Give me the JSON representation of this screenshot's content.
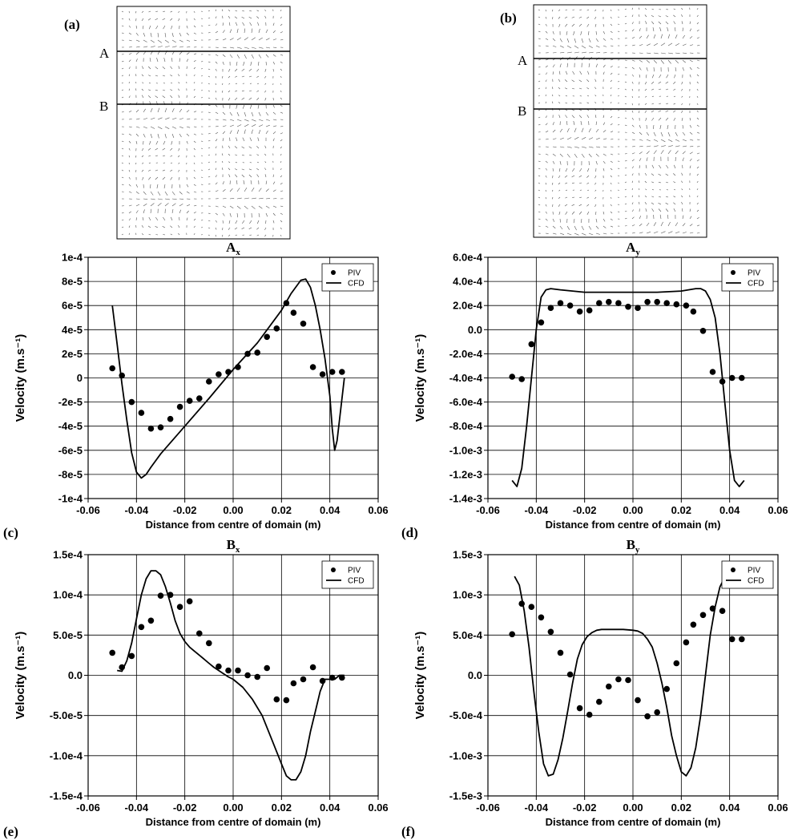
{
  "panel_letters": [
    "(a)",
    "(b)",
    "(c)",
    "(d)",
    "(e)",
    "(f)"
  ],
  "line_labels": [
    "A",
    "B"
  ],
  "chart_data": [
    {
      "panel": "(c)",
      "type": "line",
      "title": "A",
      "title_sub": "x",
      "xlabel": "Distance from centre of domain (m)",
      "ylabel": "Velocity (m.s⁻¹)",
      "xlim": [
        -0.06,
        0.06
      ],
      "ylim": [
        -0.0001,
        0.0001
      ],
      "xticks": [
        -0.06,
        -0.04,
        -0.02,
        0.0,
        0.02,
        0.04,
        0.06
      ],
      "xtick_labels": [
        "-0.06",
        "-0.04",
        "-0.02",
        "0.00",
        "0.02",
        "0.04",
        "0.06"
      ],
      "yticks": [
        -0.0001,
        -8e-05,
        -6e-05,
        -4e-05,
        -2e-05,
        0,
        2e-05,
        4e-05,
        6e-05,
        8e-05,
        0.0001
      ],
      "ytick_labels": [
        "-1e-4",
        "-8e-5",
        "-6e-5",
        "-4e-5",
        "-2e-5",
        "0",
        "2e-5",
        "4e-5",
        "6e-5",
        "8e-5",
        "1e-4"
      ],
      "grid": true,
      "legend_position": "top-right",
      "series": [
        {
          "name": "PIV",
          "style": "points",
          "x": [
            -0.05,
            -0.046,
            -0.042,
            -0.038,
            -0.034,
            -0.03,
            -0.026,
            -0.022,
            -0.018,
            -0.014,
            -0.01,
            -0.006,
            -0.002,
            0.002,
            0.006,
            0.01,
            0.014,
            0.018,
            0.022,
            0.025,
            0.029,
            0.033,
            0.037,
            0.041,
            0.045
          ],
          "y": [
            8e-06,
            2e-06,
            -2e-05,
            -2.9e-05,
            -4.2e-05,
            -4.1e-05,
            -3.4e-05,
            -2.4e-05,
            -1.9e-05,
            -1.7e-05,
            -3e-06,
            3e-06,
            5e-06,
            9e-06,
            2e-05,
            2.1e-05,
            3.4e-05,
            4.1e-05,
            6.2e-05,
            5.4e-05,
            4.5e-05,
            9e-06,
            3e-06,
            5e-06,
            5e-06
          ]
        },
        {
          "name": "CFD",
          "style": "line",
          "x": [
            -0.05,
            -0.048,
            -0.046,
            -0.044,
            -0.042,
            -0.04,
            -0.038,
            -0.036,
            -0.034,
            -0.03,
            -0.02,
            -0.01,
            0.0,
            0.01,
            0.02,
            0.024,
            0.028,
            0.03,
            0.032,
            0.034,
            0.036,
            0.038,
            0.04,
            0.041,
            0.042,
            0.043,
            0.044,
            0.046
          ],
          "y": [
            6e-05,
            2.8e-05,
            -5e-06,
            -3.5e-05,
            -6.2e-05,
            -7.8e-05,
            -8.3e-05,
            -8e-05,
            -7.4e-05,
            -6.3e-05,
            -4e-05,
            -1.7e-05,
            7e-06,
            2.9e-05,
            5.6e-05,
            7e-05,
            8.1e-05,
            8.2e-05,
            7.5e-05,
            6e-05,
            4e-05,
            1.6e-05,
            -1.5e-05,
            -4.2e-05,
            -6e-05,
            -5.2e-05,
            -3.5e-05,
            0.0
          ]
        }
      ]
    },
    {
      "panel": "(d)",
      "type": "line",
      "title": "A",
      "title_sub": "y",
      "xlabel": "Distance from centre of domain (m)",
      "ylabel": "Velocity (m.s⁻¹)",
      "xlim": [
        -0.06,
        0.06
      ],
      "ylim": [
        -0.0014,
        0.0006
      ],
      "xticks": [
        -0.06,
        -0.04,
        -0.02,
        0.0,
        0.02,
        0.04,
        0.06
      ],
      "xtick_labels": [
        "-0.06",
        "-0.04",
        "-0.02",
        "0.00",
        "0.02",
        "0.04",
        "0.06"
      ],
      "yticks": [
        -0.0014,
        -0.0012,
        -0.001,
        -0.0008,
        -0.0006,
        -0.0004,
        -0.0002,
        0,
        0.0002,
        0.0004,
        0.0006
      ],
      "ytick_labels": [
        "-1.4e-3",
        "-1.2e-3",
        "-1.0e-3",
        "-8.0e-4",
        "-6.0e-4",
        "-4.0e-4",
        "-2.0e-4",
        "0.0",
        "2.0e-4",
        "4.0e-4",
        "6.0e-4"
      ],
      "grid": true,
      "legend_position": "top-right",
      "series": [
        {
          "name": "PIV",
          "style": "points",
          "x": [
            -0.05,
            -0.046,
            -0.042,
            -0.038,
            -0.034,
            -0.03,
            -0.026,
            -0.022,
            -0.018,
            -0.014,
            -0.01,
            -0.006,
            -0.002,
            0.002,
            0.006,
            0.01,
            0.014,
            0.018,
            0.022,
            0.025,
            0.029,
            0.033,
            0.037,
            0.041,
            0.045
          ],
          "y": [
            -0.00039,
            -0.00041,
            -0.00012,
            6e-05,
            0.00018,
            0.00022,
            0.0002,
            0.00015,
            0.00016,
            0.00022,
            0.00023,
            0.00022,
            0.00019,
            0.00018,
            0.00023,
            0.00023,
            0.00022,
            0.00021,
            0.0002,
            0.00015,
            -1e-05,
            -0.00035,
            -0.00043,
            -0.0004,
            -0.0004
          ]
        },
        {
          "name": "CFD",
          "style": "line",
          "x": [
            -0.05,
            -0.048,
            -0.046,
            -0.044,
            -0.042,
            -0.04,
            -0.038,
            -0.036,
            -0.034,
            -0.03,
            -0.02,
            -0.01,
            0.0,
            0.01,
            0.02,
            0.026,
            0.028,
            0.03,
            0.032,
            0.034,
            0.036,
            0.038,
            0.04,
            0.042,
            0.044,
            0.046
          ],
          "y": [
            -0.00125,
            -0.0013,
            -0.00115,
            -0.0008,
            -0.0004,
            0.0,
            0.00027,
            0.00033,
            0.00034,
            0.00033,
            0.00031,
            0.00031,
            0.00031,
            0.00031,
            0.00032,
            0.00034,
            0.00034,
            0.00032,
            0.00025,
            0.0001,
            -0.0002,
            -0.0006,
            -0.001,
            -0.00125,
            -0.0013,
            -0.00125
          ]
        }
      ]
    },
    {
      "panel": "(e)",
      "type": "line",
      "title": "B",
      "title_sub": "x",
      "xlabel": "Distance from centre of domain (m)",
      "ylabel": "Velocity (m.s⁻¹)",
      "xlim": [
        -0.06,
        0.06
      ],
      "ylim": [
        -0.00015,
        0.00015
      ],
      "xticks": [
        -0.06,
        -0.04,
        -0.02,
        0.0,
        0.02,
        0.04,
        0.06
      ],
      "xtick_labels": [
        "-0.06",
        "-0.04",
        "-0.02",
        "0.00",
        "0.02",
        "0.04",
        "0.06"
      ],
      "yticks": [
        -0.00015,
        -0.0001,
        -5e-05,
        0,
        5e-05,
        0.0001,
        0.00015
      ],
      "ytick_labels": [
        "-1.5e-4",
        "-1.0e-4",
        "-5.0e-5",
        "0.0",
        "5.0e-5",
        "1.0e-4",
        "1.5e-4"
      ],
      "grid": true,
      "legend_position": "top-right",
      "series": [
        {
          "name": "PIV",
          "style": "points",
          "x": [
            -0.05,
            -0.046,
            -0.042,
            -0.038,
            -0.034,
            -0.03,
            -0.026,
            -0.022,
            -0.018,
            -0.014,
            -0.01,
            -0.006,
            -0.002,
            0.002,
            0.006,
            0.01,
            0.014,
            0.018,
            0.022,
            0.025,
            0.029,
            0.033,
            0.037,
            0.041,
            0.045
          ],
          "y": [
            2.8e-05,
            1e-05,
            2.4e-05,
            6e-05,
            6.8e-05,
            9.9e-05,
            0.0001,
            8.5e-05,
            9.2e-05,
            5.2e-05,
            4e-05,
            1.1e-05,
            6e-06,
            6e-06,
            0.0,
            -2e-06,
            9e-06,
            -3e-05,
            -3.1e-05,
            -1e-05,
            -5e-06,
            1e-05,
            -7e-06,
            -3e-06,
            -3e-06
          ]
        },
        {
          "name": "CFD",
          "style": "line",
          "x": [
            -0.048,
            -0.046,
            -0.044,
            -0.042,
            -0.04,
            -0.038,
            -0.036,
            -0.034,
            -0.032,
            -0.03,
            -0.028,
            -0.026,
            -0.024,
            -0.022,
            -0.02,
            -0.018,
            -0.016,
            -0.014,
            -0.012,
            -0.01,
            -0.008,
            -0.006,
            -0.004,
            -0.002,
            0.0,
            0.004,
            0.008,
            0.012,
            0.016,
            0.02,
            0.022,
            0.024,
            0.026,
            0.028,
            0.03,
            0.032,
            0.034,
            0.036,
            0.038,
            0.04,
            0.042,
            0.044,
            0.046
          ],
          "y": [
            6e-06,
            5e-06,
            1.8e-05,
            4e-05,
            7e-05,
            0.0001,
            0.00012,
            0.00013,
            0.00013,
            0.000125,
            0.00011,
            9e-05,
            6.8e-05,
            5.2e-05,
            4.2e-05,
            3.5e-05,
            3e-05,
            2.5e-05,
            2e-05,
            1.5e-05,
            1e-05,
            6e-06,
            2e-06,
            -2e-06,
            -5e-06,
            -1.5e-05,
            -3e-05,
            -5e-05,
            -8e-05,
            -0.00011,
            -0.000125,
            -0.00013,
            -0.00013,
            -0.00012,
            -0.0001,
            -7e-05,
            -4.5e-05,
            -2e-05,
            -5e-06,
            -5e-06,
            -5e-06,
            0.0,
            0.0
          ]
        }
      ]
    },
    {
      "panel": "(f)",
      "type": "line",
      "title": "B",
      "title_sub": "y",
      "xlabel": "Distance from centre of domain (m)",
      "ylabel": "Velocity (m.s⁻¹)",
      "xlim": [
        -0.06,
        0.06
      ],
      "ylim": [
        -0.0015,
        0.0015
      ],
      "xticks": [
        -0.06,
        -0.04,
        -0.02,
        0.0,
        0.02,
        0.04,
        0.06
      ],
      "xtick_labels": [
        "-0.06",
        "-0.04",
        "-0.02",
        "0.00",
        "0.02",
        "0.04",
        "0.06"
      ],
      "yticks": [
        -0.0015,
        -0.001,
        -0.0005,
        0,
        0.0005,
        0.001,
        0.0015
      ],
      "ytick_labels": [
        "-1.5e-3",
        "-1.0e-3",
        "-5.0e-4",
        "0.0",
        "5.0e-4",
        "1.0e-3",
        "1.5e-3"
      ],
      "grid": true,
      "legend_position": "top-right",
      "series": [
        {
          "name": "PIV",
          "style": "points",
          "x": [
            -0.05,
            -0.046,
            -0.042,
            -0.038,
            -0.034,
            -0.03,
            -0.026,
            -0.022,
            -0.018,
            -0.014,
            -0.01,
            -0.006,
            -0.002,
            0.002,
            0.006,
            0.01,
            0.014,
            0.018,
            0.022,
            0.025,
            0.029,
            0.033,
            0.037,
            0.041,
            0.045
          ],
          "y": [
            0.00051,
            0.00089,
            0.00085,
            0.00072,
            0.00054,
            0.00028,
            1e-05,
            -0.00041,
            -0.00049,
            -0.00033,
            -0.00014,
            -5e-05,
            -6e-05,
            -0.00031,
            -0.00051,
            -0.00046,
            -0.00017,
            0.00015,
            0.00041,
            0.00063,
            0.00075,
            0.00083,
            0.0008,
            0.00045,
            0.00045
          ]
        },
        {
          "name": "CFD",
          "style": "line",
          "x": [
            -0.049,
            -0.047,
            -0.045,
            -0.043,
            -0.041,
            -0.039,
            -0.037,
            -0.035,
            -0.033,
            -0.031,
            -0.029,
            -0.027,
            -0.025,
            -0.023,
            -0.021,
            -0.019,
            -0.017,
            -0.015,
            -0.013,
            -0.011,
            -0.008,
            -0.004,
            0.0,
            0.002,
            0.004,
            0.006,
            0.008,
            0.01,
            0.012,
            0.014,
            0.016,
            0.018,
            0.02,
            0.022,
            0.024,
            0.026,
            0.028,
            0.03,
            0.032,
            0.034,
            0.036,
            0.038,
            0.04,
            0.042,
            0.044,
            0.046
          ],
          "y": [
            0.00123,
            0.00112,
            0.0008,
            0.00035,
            -0.0002,
            -0.0007,
            -0.0011,
            -0.00125,
            -0.00123,
            -0.00105,
            -0.00078,
            -0.00045,
            -0.0001,
            0.0002,
            0.00038,
            0.00048,
            0.00053,
            0.00056,
            0.00057,
            0.00057,
            0.00057,
            0.00057,
            0.00056,
            0.00055,
            0.00052,
            0.00045,
            0.00035,
            0.00015,
            -0.0001,
            -0.0004,
            -0.00075,
            -0.001,
            -0.0012,
            -0.00125,
            -0.00115,
            -0.0009,
            -0.0005,
            0.0,
            0.0005,
            0.00085,
            0.0011,
            0.00122,
            0.00123,
            0.00123,
            0.00123,
            0.00123
          ]
        }
      ]
    }
  ]
}
